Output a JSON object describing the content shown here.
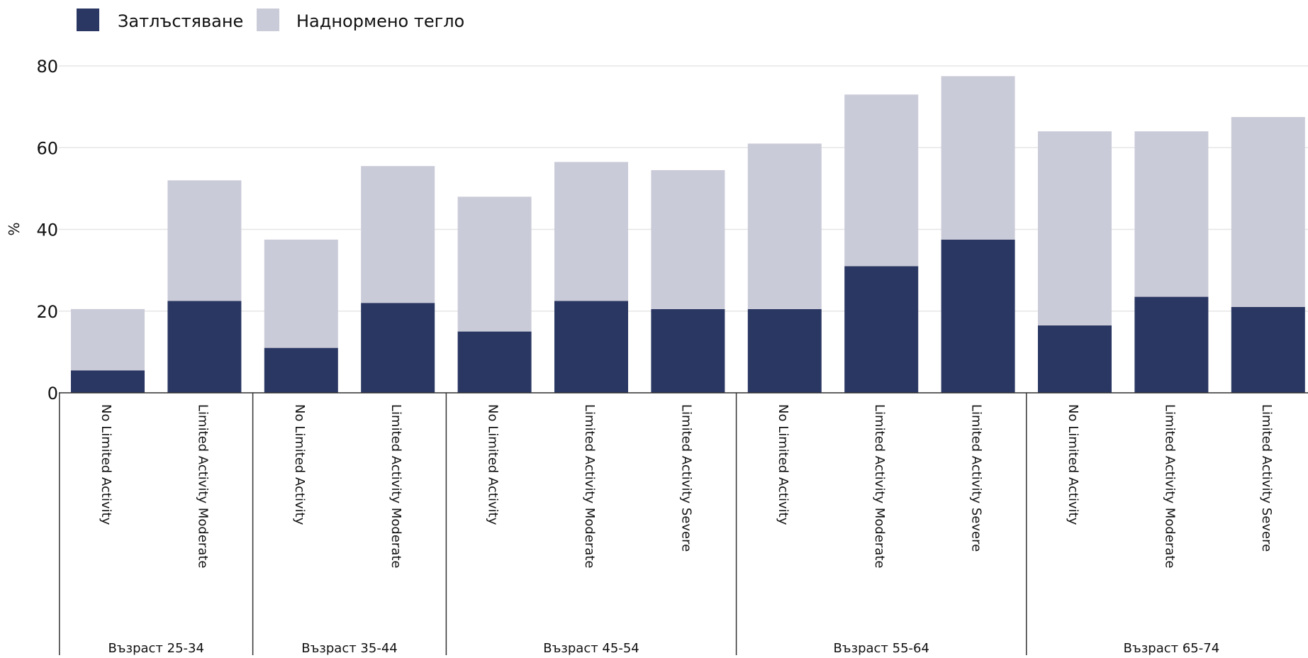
{
  "chart_data": {
    "type": "bar",
    "stacked": true,
    "ylabel": "%",
    "ylim": [
      0,
      80
    ],
    "yticks": [
      0,
      20,
      40,
      60,
      80
    ],
    "grid": true,
    "legend_position": "top-left",
    "legend": [
      {
        "label": "Затлъстяване",
        "color": "#2a3762"
      },
      {
        "label": "Наднормено тегло",
        "color": "#cacbd8"
      }
    ],
    "groups": [
      {
        "label": "Възраст 25-34",
        "categories": [
          "No Limited Activity",
          "Limited Activity Moderate"
        ]
      },
      {
        "label": "Възраст 35-44",
        "categories": [
          "No Limited Activity",
          "Limited Activity Moderate"
        ]
      },
      {
        "label": "Възраст 45-54",
        "categories": [
          "No Limited Activity",
          "Limited Activity Moderate",
          "Limited Activity Severe"
        ]
      },
      {
        "label": "Възраст 55-64",
        "categories": [
          "No Limited Activity",
          "Limited Activity Moderate",
          "Limited Activity Severe"
        ]
      },
      {
        "label": "Възраст 65-74",
        "categories": [
          "No Limited Activity",
          "Limited Activity Moderate",
          "Limited Activity Severe"
        ]
      }
    ],
    "series": [
      {
        "name": "Затлъстяване",
        "color": "#2a3762",
        "values": [
          5.5,
          22.5,
          11.0,
          22.0,
          15.0,
          22.5,
          20.5,
          20.5,
          31.0,
          37.5,
          16.5,
          23.5,
          21.0
        ]
      },
      {
        "name": "Наднормено тегло",
        "color": "#cacbd8",
        "values": [
          15.0,
          29.5,
          26.5,
          33.5,
          33.0,
          34.0,
          34.0,
          40.5,
          42.0,
          40.0,
          47.5,
          40.5,
          46.5
        ]
      }
    ]
  }
}
